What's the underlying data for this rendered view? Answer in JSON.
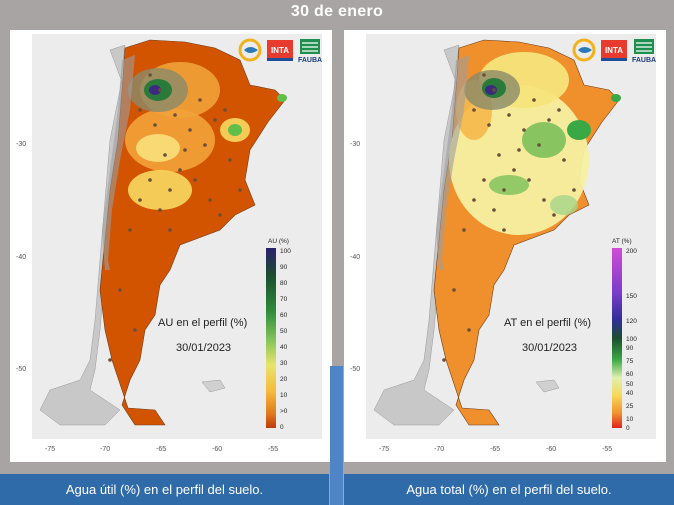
{
  "page_title": "30 de enero",
  "left_panel": {
    "map_title": "AU en el perfil (%)",
    "map_date": "30/01/2023",
    "legend_title": "AU (%)",
    "legend_ticks": [
      "100",
      "90",
      "80",
      "70",
      "60",
      "50",
      "40",
      "30",
      "20",
      "10",
      ">0",
      "0"
    ],
    "caption": "Agua útil (%) en el perfil del suelo."
  },
  "right_panel": {
    "map_title": "AT en el perfil (%)",
    "map_date": "30/01/2023",
    "legend_title": "AT (%)",
    "legend_ticks": [
      "200",
      "150",
      "120",
      "100",
      "90",
      "75",
      "60",
      "50",
      "40",
      "25",
      "10",
      "0"
    ],
    "caption": "Agua total (%) en el perfil del suelo."
  },
  "axes": {
    "lon_ticks": [
      "-75",
      "-70",
      "-65",
      "-60",
      "-55"
    ],
    "lat_ticks": [
      "-30",
      "-40",
      "-50"
    ]
  },
  "logos": {
    "inta": "INTA",
    "fauba": "FAUBA"
  },
  "colors": {
    "background": "#a7a4a3",
    "caption_bar": "#2f6aa9",
    "au_dry": "#d35400",
    "au_mid": "#f5b93a",
    "au_wet": "#2e8b3a",
    "at_dry": "#f0902c",
    "at_mid": "#f6f0a0",
    "at_wet": "#39a845"
  }
}
